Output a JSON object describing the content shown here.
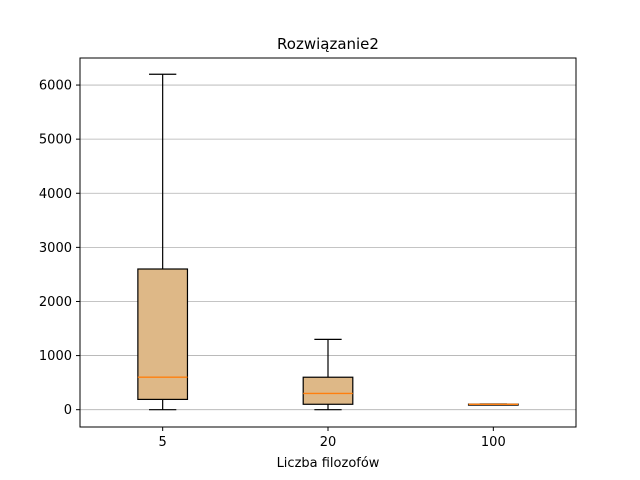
{
  "chart_data": {
    "type": "box",
    "title": "Rozwiązanie2",
    "xlabel": "Liczba filozofów",
    "ylabel": "",
    "categories": [
      "5",
      "20",
      "100"
    ],
    "boxes": [
      {
        "category": "5",
        "whisker_low": 0,
        "q1": 190,
        "median": 600,
        "q3": 2600,
        "whisker_high": 6200
      },
      {
        "category": "20",
        "whisker_low": 0,
        "q1": 100,
        "median": 300,
        "q3": 600,
        "whisker_high": 1300
      },
      {
        "category": "100",
        "whisker_low": 95,
        "q1": 98,
        "median": 100,
        "q3": 103,
        "whisker_high": 106
      }
    ],
    "ylim": [
      -320,
      6500
    ],
    "yticks": [
      0,
      1000,
      2000,
      3000,
      4000,
      5000,
      6000
    ],
    "grid": "horizontal",
    "colors": {
      "box_fill": "#deb887",
      "box_edge": "#000000",
      "median": "#ff7f0e",
      "grid": "#b0b0b0"
    }
  }
}
